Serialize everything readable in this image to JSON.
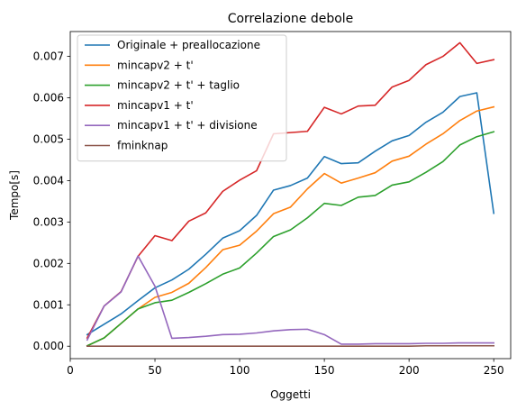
{
  "chart_data": {
    "type": "line",
    "title": "Correlazione debole",
    "xlabel": "Oggetti",
    "ylabel": "Tempo[s]",
    "xlim": [
      0,
      260
    ],
    "ylim": [
      -0.0003,
      0.0076
    ],
    "xticks": [
      0,
      50,
      100,
      150,
      200,
      250
    ],
    "xtick_labels": [
      "0",
      "50",
      "100",
      "150",
      "200",
      "250"
    ],
    "yticks": [
      0.0,
      0.001,
      0.002,
      0.003,
      0.004,
      0.005,
      0.006,
      0.007
    ],
    "ytick_labels": [
      "0.000",
      "0.001",
      "0.002",
      "0.003",
      "0.004",
      "0.005",
      "0.006",
      "0.007"
    ],
    "grid": false,
    "legend_position": "top-left",
    "x": [
      10,
      20,
      30,
      40,
      50,
      60,
      70,
      80,
      90,
      100,
      110,
      120,
      130,
      140,
      150,
      160,
      170,
      180,
      190,
      200,
      210,
      220,
      230,
      240,
      250
    ],
    "series": [
      {
        "name": "Originale + preallocazione",
        "color": "#1f77b4",
        "values": [
          0.00028,
          0.00053,
          0.00078,
          0.0011,
          0.00141,
          0.0016,
          0.00186,
          0.00222,
          0.00261,
          0.00279,
          0.00316,
          0.00377,
          0.00388,
          0.00406,
          0.00458,
          0.00441,
          0.00443,
          0.00471,
          0.00496,
          0.00509,
          0.00541,
          0.00565,
          0.00603,
          0.00612,
          0.00321
        ]
      },
      {
        "name": "mincapv2 + t'",
        "color": "#ff7f0e",
        "values": [
          1e-05,
          0.0002,
          0.00055,
          0.0009,
          0.00118,
          0.0013,
          0.00152,
          0.0019,
          0.00233,
          0.00244,
          0.00278,
          0.0032,
          0.00336,
          0.0038,
          0.00417,
          0.00394,
          0.00406,
          0.00419,
          0.00447,
          0.00459,
          0.00488,
          0.00513,
          0.00545,
          0.00568,
          0.00578
        ]
      },
      {
        "name": "mincapv2 + t' + taglio",
        "color": "#2ca02c",
        "values": [
          1e-05,
          0.0002,
          0.00055,
          0.0009,
          0.00105,
          0.00111,
          0.0013,
          0.00151,
          0.00174,
          0.00189,
          0.00225,
          0.00265,
          0.00281,
          0.0031,
          0.00345,
          0.0034,
          0.0036,
          0.00364,
          0.00389,
          0.00397,
          0.0042,
          0.00446,
          0.00486,
          0.00506,
          0.00518
        ]
      },
      {
        "name": "mincapv1 + t'",
        "color": "#d62728",
        "values": [
          0.0002,
          0.00097,
          0.00132,
          0.00217,
          0.00267,
          0.00255,
          0.00302,
          0.00322,
          0.00374,
          0.00401,
          0.00424,
          0.00513,
          0.00516,
          0.00519,
          0.00577,
          0.00561,
          0.0058,
          0.00582,
          0.00626,
          0.00642,
          0.0068,
          0.007,
          0.00733,
          0.00683,
          0.00692
        ]
      },
      {
        "name": "mincapv1 + t' + divisione",
        "color": "#9467bd",
        "values": [
          0.00015,
          0.00097,
          0.00131,
          0.00218,
          0.00145,
          0.00019,
          0.00021,
          0.00024,
          0.00028,
          0.00029,
          0.00032,
          0.00037,
          0.0004,
          0.00041,
          0.00028,
          5e-05,
          5e-05,
          6e-05,
          6e-05,
          6e-05,
          7e-05,
          7e-05,
          8e-05,
          8e-05,
          8e-05
        ]
      },
      {
        "name": "fminknap",
        "color": "#8c564b",
        "values": [
          0.0,
          0.0,
          0.0,
          0.0,
          0.0,
          0.0,
          0.0,
          0.0,
          0.0,
          0.0,
          0.0,
          0.0,
          0.0,
          0.0,
          0.0,
          0.0,
          0.0,
          0.0,
          0.0,
          0.0,
          1e-05,
          1e-05,
          1e-05,
          1e-05,
          1e-05
        ]
      }
    ]
  }
}
